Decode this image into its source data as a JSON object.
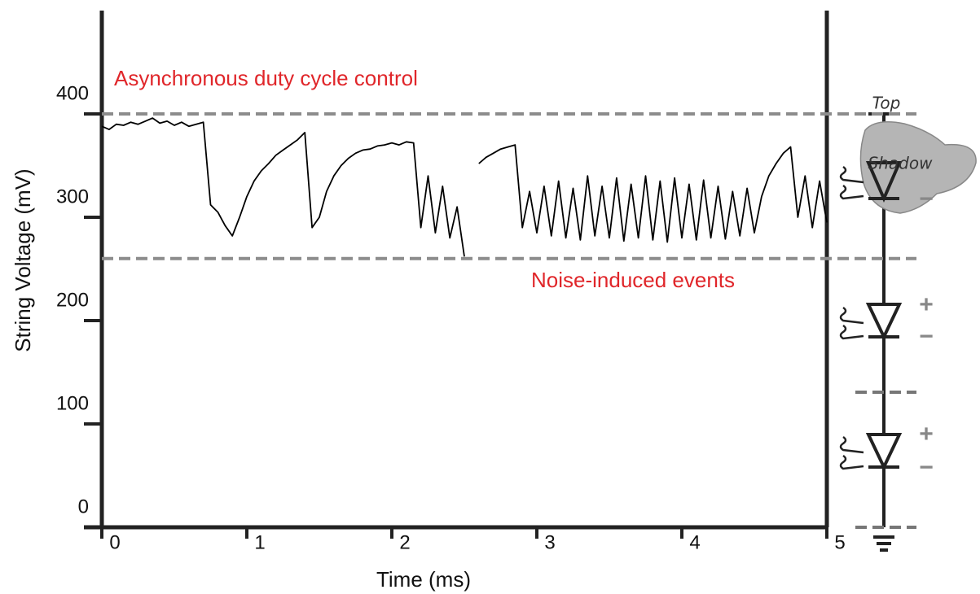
{
  "chart_data": {
    "type": "line",
    "x_label": "Time (ms)",
    "y_label": "String Voltage (mV)",
    "annotations": [
      "Asynchronous duty cycle control",
      "Noise-induced events"
    ],
    "hlines": [
      400,
      260
    ],
    "hline_color": "#8c8c8c",
    "xlim": [
      0,
      5
    ],
    "xticks": [
      0,
      1,
      2,
      3,
      4,
      5
    ],
    "ylim": [
      0,
      500
    ],
    "yticks": [
      0,
      100,
      200,
      300,
      400
    ],
    "x": [
      0,
      0.05,
      0.1,
      0.15,
      0.2,
      0.25,
      0.3,
      0.35,
      0.4,
      0.45,
      0.5,
      0.55,
      0.6,
      0.65,
      0.7,
      0.75,
      0.8,
      0.85,
      0.9,
      0.95,
      1.0,
      1.05,
      1.1,
      1.15,
      1.2,
      1.25,
      1.3,
      1.35,
      1.4,
      1.45,
      1.5,
      1.55,
      1.6,
      1.65,
      1.7,
      1.75,
      1.8,
      1.85,
      1.9,
      1.95,
      2.0,
      2.05,
      2.1,
      2.15,
      2.2,
      2.25,
      2.3,
      2.35,
      2.4,
      2.45,
      2.5,
      2.55,
      2.6,
      2.65,
      2.7,
      2.75,
      2.8,
      2.85,
      2.9,
      2.95,
      3.0,
      3.05,
      3.1,
      3.15,
      3.2,
      3.25,
      3.3,
      3.35,
      3.4,
      3.45,
      3.5,
      3.55,
      3.6,
      3.65,
      3.7,
      3.75,
      3.8,
      3.85,
      3.9,
      3.95,
      4.0,
      4.05,
      4.1,
      4.15,
      4.2,
      4.25,
      4.3,
      4.35,
      4.4,
      4.45,
      4.5,
      4.55,
      4.6,
      4.65,
      4.7,
      4.75,
      4.8,
      4.85,
      4.9,
      4.95,
      5.0
    ],
    "series": [
      {
        "color": "#000000",
        "values": [
          388,
          385,
          390,
          389,
          392,
          390,
          393,
          396,
          391,
          393,
          389,
          392,
          388,
          390,
          392,
          312,
          305,
          292,
          282,
          300,
          320,
          335,
          345,
          352,
          360,
          365,
          370,
          375,
          382,
          290,
          300,
          325,
          340,
          350,
          357,
          362,
          365,
          366,
          369,
          370,
          372,
          370,
          373,
          372,
          290,
          340,
          285,
          330,
          280,
          310,
          262,
          null,
          352,
          358,
          362,
          366,
          368,
          370,
          290,
          325,
          285,
          330,
          282,
          335,
          280,
          328,
          278,
          340,
          282,
          330,
          280,
          338,
          277,
          332,
          280,
          340,
          278,
          335,
          276,
          338,
          280,
          332,
          278,
          336,
          280,
          330,
          279,
          325,
          282,
          328,
          285,
          320,
          340,
          352,
          362,
          368,
          300,
          340,
          290,
          335,
          295
        ]
      }
    ]
  },
  "diagram": {
    "top": "Top",
    "shadow": "Shadow",
    "plus": [
      "+",
      "+"
    ],
    "minus": [
      "−",
      "−",
      "−"
    ]
  }
}
